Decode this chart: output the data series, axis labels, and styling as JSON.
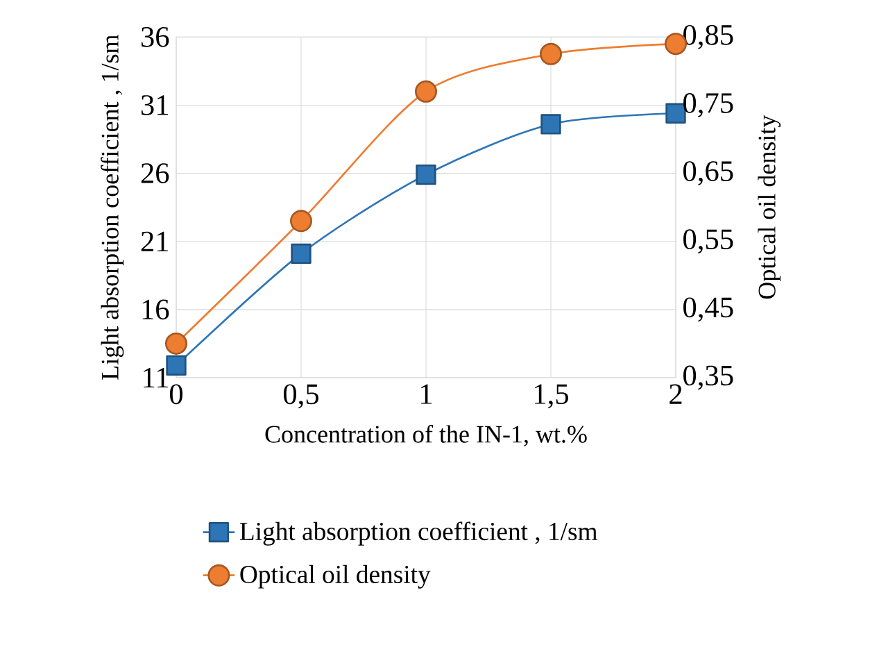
{
  "chart_data": {
    "type": "line",
    "xlabel": "Concentration of the IN-1, wt.%",
    "ylabel": "Light absorption coefficient , 1/sm",
    "y2label": "Optical oil density",
    "x": [
      0,
      0.5,
      1,
      1.5,
      2
    ],
    "series": [
      {
        "name": "Light absorption coefficient , 1/sm",
        "color": "#2e75b6",
        "marker": "square",
        "values": [
          11.9,
          20.1,
          25.9,
          29.6,
          30.4
        ]
      },
      {
        "name": "Optical oil density",
        "color": "#ed7d31",
        "marker": "circle",
        "axis": "y2",
        "values": [
          0.4,
          0.58,
          0.77,
          0.825,
          0.84
        ]
      }
    ],
    "xlim": [
      0,
      2
    ],
    "xticks": [
      0,
      {
        "value": 0.5,
        "label": "0,5"
      },
      1,
      {
        "value": 1.5,
        "label": "1,5"
      },
      2
    ],
    "ylim": [
      11,
      36
    ],
    "yticks": [
      11,
      16,
      21,
      26,
      31,
      36
    ],
    "y2lim": [
      0.35,
      0.85
    ],
    "y2ticks": [
      {
        "value": 0.35,
        "label": "0,35"
      },
      {
        "value": 0.45,
        "label": "0,45"
      },
      {
        "value": 0.55,
        "label": "0,55"
      },
      {
        "value": 0.65,
        "label": "0,65"
      },
      {
        "value": 0.75,
        "label": "0,75"
      },
      {
        "value": 0.85,
        "label": "0,85"
      }
    ],
    "grid": true,
    "legend": "bottom",
    "line_style": "solid"
  }
}
